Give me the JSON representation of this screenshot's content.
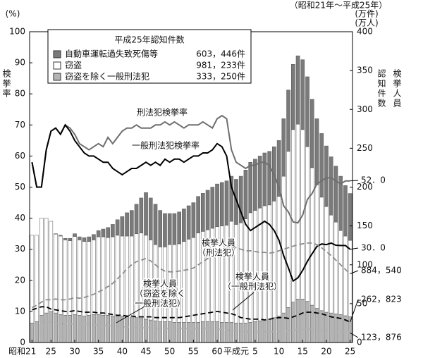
{
  "chart_data": {
    "type": "combo",
    "period": "（昭和21年～平成25年）",
    "y_unit": "(%)",
    "y_title": "検挙率",
    "y2_units": [
      "(万件)",
      "(万人)"
    ],
    "y2_titles": [
      "認知件数",
      "検挙人員"
    ],
    "legend_title": "平成25年認知件数",
    "categories": [
      "昭和21",
      null,
      null,
      null,
      "25",
      null,
      null,
      null,
      null,
      "30",
      null,
      null,
      null,
      null,
      "35",
      null,
      null,
      null,
      null,
      "40",
      null,
      null,
      null,
      null,
      "45",
      null,
      null,
      null,
      null,
      "50",
      null,
      null,
      null,
      null,
      "55",
      null,
      null,
      null,
      null,
      "60",
      null,
      null,
      null,
      "平成元",
      null,
      null,
      null,
      "5",
      null,
      null,
      null,
      null,
      "10",
      null,
      null,
      null,
      null,
      "15",
      null,
      null,
      null,
      null,
      "20",
      null,
      null,
      null,
      null,
      "25"
    ],
    "ylim": [
      0,
      100
    ],
    "yticks": [
      0,
      10,
      20,
      30,
      40,
      50,
      60,
      70,
      80,
      90,
      100
    ],
    "y2lim": [
      0,
      400
    ],
    "y2ticks": [
      0,
      50,
      100,
      150,
      200,
      250,
      300,
      350,
      400
    ],
    "series": [
      {
        "name": "自動車運転過失致死傷等",
        "kind": "bar",
        "axis": "y2",
        "color": "#7a7a7a",
        "legend_value": "603，446件",
        "values": [
          0,
          0,
          0,
          0,
          0,
          0.5,
          1,
          2,
          3,
          3.5,
          4,
          5,
          6,
          7,
          8,
          10,
          13,
          16,
          20,
          25,
          30,
          33,
          38,
          45,
          55,
          54,
          52,
          47,
          43,
          40,
          40,
          41,
          42,
          43,
          45,
          47,
          49,
          51,
          53,
          55,
          56,
          57,
          58,
          58,
          60,
          63,
          65,
          66,
          67,
          68,
          69,
          70,
          72,
          74,
          79,
          84,
          88,
          90,
          90,
          88,
          85,
          82,
          78,
          75,
          72,
          70,
          65,
          60.3446
        ]
      },
      {
        "name": "窃盗",
        "kind": "bar",
        "axis": "y2",
        "color": "#ffffff",
        "legend_value": "981，233件",
        "values": [
          113,
          111,
          125,
          122,
          116,
          101.5,
          101,
          97,
          96,
          100.5,
          97,
          96,
          95,
          96,
          100,
          101,
          100,
          102,
          104,
          103,
          104,
          105,
          108,
          110,
          108,
          103,
          98,
          96,
          96,
          99,
          100,
          101,
          104,
          107,
          109,
          115,
          116,
          118,
          120,
          122,
          124,
          125,
          130,
          127,
          129,
          134,
          141,
          143,
          145,
          147,
          147,
          150,
          154,
          176,
          201,
          222,
          225,
          218,
          199,
          177,
          159,
          146,
          136,
          126,
          118,
          108,
          102.5,
          98.1233
        ]
      },
      {
        "name": "窃盗を除く一般刑法犯",
        "kind": "bar",
        "axis": "y2",
        "color": "#b4b4b4",
        "legend_value": "333，250件",
        "values": [
          25,
          27,
          35,
          38,
          40,
          38,
          36,
          35,
          35,
          36,
          35,
          34,
          35,
          36,
          36,
          35,
          35,
          34,
          34,
          34,
          33,
          32,
          32,
          31,
          30,
          29,
          28,
          27,
          27,
          27,
          26,
          26,
          26,
          26,
          26,
          26,
          27,
          27,
          27,
          27,
          26,
          26,
          26,
          25,
          25,
          25,
          26,
          27,
          28,
          29,
          30,
          32,
          34,
          38,
          45,
          52,
          56,
          56,
          53,
          48,
          44,
          41,
          39,
          38,
          37,
          36,
          34.5,
          33.325
        ]
      },
      {
        "name": "刑法犯検挙率",
        "kind": "line",
        "axis": "y",
        "color": "#6e6e6e",
        "end_label": "52．0",
        "values": [
          58,
          50,
          50,
          62,
          68,
          69,
          67,
          70,
          69,
          67,
          64,
          63,
          62,
          63,
          64,
          63,
          66,
          64,
          66,
          68,
          69,
          69,
          70,
          69,
          69,
          69,
          70,
          70,
          71,
          70,
          71,
          70,
          69,
          70,
          70,
          70,
          71,
          70,
          69,
          72,
          73,
          72,
          62,
          58,
          57,
          56,
          57,
          57,
          58,
          58,
          57,
          54,
          50,
          44,
          42,
          38.8,
          38.5,
          41,
          46,
          48,
          51,
          52,
          53,
          53,
          52,
          51,
          52,
          52
        ]
      },
      {
        "name": "一般刑法犯検挙率",
        "kind": "line",
        "axis": "y",
        "color": "#000000",
        "end_label": "30．0",
        "values": [
          58,
          50,
          50,
          62,
          68,
          69,
          67,
          70,
          68,
          65,
          63,
          61,
          60,
          60,
          59,
          58,
          58,
          56,
          55,
          54,
          55,
          56,
          56,
          57,
          58,
          57,
          58,
          57,
          59,
          58,
          59,
          59,
          58,
          59,
          60,
          60,
          61,
          61,
          62,
          64,
          63,
          60,
          50,
          46,
          42,
          38,
          36,
          37,
          38,
          39,
          38,
          36,
          33,
          28,
          24,
          19.8,
          20.8,
          23.2,
          26.1,
          28.6,
          30.9,
          31.7,
          31.5,
          32,
          31.3,
          31.2,
          31.2,
          30
        ]
      },
      {
        "name": "検挙人員（刑法犯）",
        "kind": "dashed",
        "axis": "y2",
        "color": "#8c8c8c",
        "end_label": "884，540",
        "values": [
          45,
          48,
          52,
          55,
          55,
          56,
          55,
          55,
          56,
          58,
          57,
          58,
          60,
          62,
          65,
          68,
          72,
          76,
          82,
          88,
          95,
          100,
          104,
          106,
          108,
          105,
          100,
          95,
          92,
          91,
          91,
          92,
          93,
          94,
          96,
          100,
          104,
          108,
          112,
          116,
          120,
          122,
          123,
          122,
          120,
          118,
          118,
          117,
          116,
          116,
          115,
          116,
          118,
          120,
          122,
          124,
          126,
          127,
          128,
          128,
          126,
          122,
          117,
          112,
          106,
          100,
          94,
          88.454
        ]
      },
      {
        "name": "検挙人員（一般刑法犯）",
        "kind": "dashed",
        "axis": "y2",
        "color": "#000000",
        "end_label": "262，823",
        "values": [
          42,
          44,
          46,
          46,
          43,
          42,
          41,
          40,
          40,
          41,
          40,
          39,
          39,
          39,
          38,
          38,
          37,
          36,
          35,
          35,
          34,
          34,
          33,
          33,
          33,
          33,
          32,
          32,
          32,
          32,
          32,
          32,
          33,
          34,
          35,
          36,
          37,
          38,
          39,
          40,
          39,
          38,
          37,
          35,
          32,
          31,
          30,
          30,
          30,
          29,
          30,
          31,
          32,
          32,
          31,
          33,
          35,
          38,
          39,
          39,
          38,
          37,
          35,
          33,
          32,
          31,
          29,
          26.2823
        ]
      },
      {
        "name": "検挙人員（窃盗を除く一般刑法犯）",
        "kind": "dashed",
        "axis": "y2",
        "color": "#b0b0b0",
        "end_label": "123，876",
        "values": [
          22,
          24,
          26,
          27,
          26,
          25,
          24,
          24,
          24,
          24,
          23,
          23,
          23,
          23,
          22,
          22,
          22,
          21,
          21,
          20,
          20,
          20,
          19,
          19,
          19,
          19,
          18,
          18,
          18,
          18,
          18,
          18,
          18,
          18,
          18,
          18,
          18,
          18,
          17,
          17,
          17,
          16,
          16,
          15,
          14,
          14,
          14,
          14,
          14,
          14,
          14,
          14,
          14,
          14,
          15,
          16,
          17,
          17,
          17,
          17,
          16,
          16,
          15,
          15,
          14,
          14,
          13,
          12.3876
        ]
      }
    ],
    "annotations": [
      [
        "刑法犯検挙率"
      ],
      [
        "一般刑法犯検挙率"
      ],
      [
        "検挙人員",
        "（刑法犯）"
      ],
      [
        "検挙人員",
        "（窃盗を除く",
        "一般刑法犯）"
      ],
      [
        "検挙人員",
        "（一般刑法犯）"
      ]
    ]
  }
}
